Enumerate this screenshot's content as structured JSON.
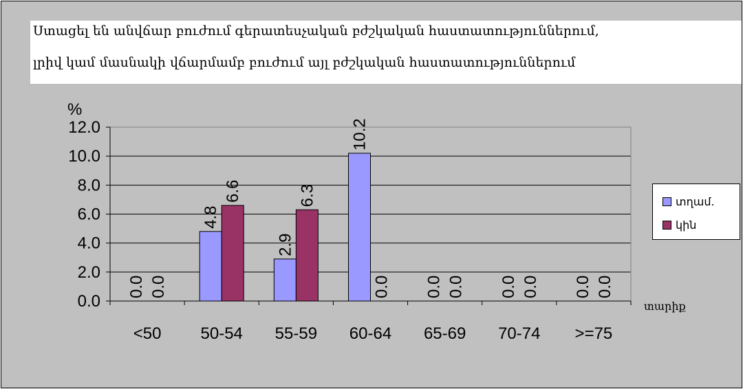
{
  "chart_data": {
    "type": "bar",
    "title_lines": [
      "Ստացել են անվճար բուժում գերատեսչական բժշկական հաստատություններում,",
      "լրիվ կամ մասնակի վճարմամբ բուժում այլ բժշկական հաստատություններում"
    ],
    "ylabel": "%",
    "xlabel": "տարիք",
    "categories": [
      "<50",
      "50-54",
      "55-59",
      "60-64",
      "65-69",
      "70-74",
      ">=75"
    ],
    "series": [
      {
        "name": "տղամ.",
        "color": "#9999ff",
        "values": [
          0.0,
          4.8,
          2.9,
          10.2,
          0.0,
          0.0,
          0.0
        ]
      },
      {
        "name": "կին",
        "color": "#993366",
        "values": [
          0.0,
          6.6,
          6.3,
          0.0,
          0.0,
          0.0,
          0.0
        ]
      }
    ],
    "y_ticks": [
      "0.0",
      "2.0",
      "4.0",
      "6.0",
      "8.0",
      "10.0",
      "12.0"
    ],
    "ylim": [
      0,
      12
    ],
    "data_label_format": "1 decimal",
    "grid": "horizontal major gridlines",
    "legend_position": "right",
    "plot_background": "#c0c0c0"
  }
}
